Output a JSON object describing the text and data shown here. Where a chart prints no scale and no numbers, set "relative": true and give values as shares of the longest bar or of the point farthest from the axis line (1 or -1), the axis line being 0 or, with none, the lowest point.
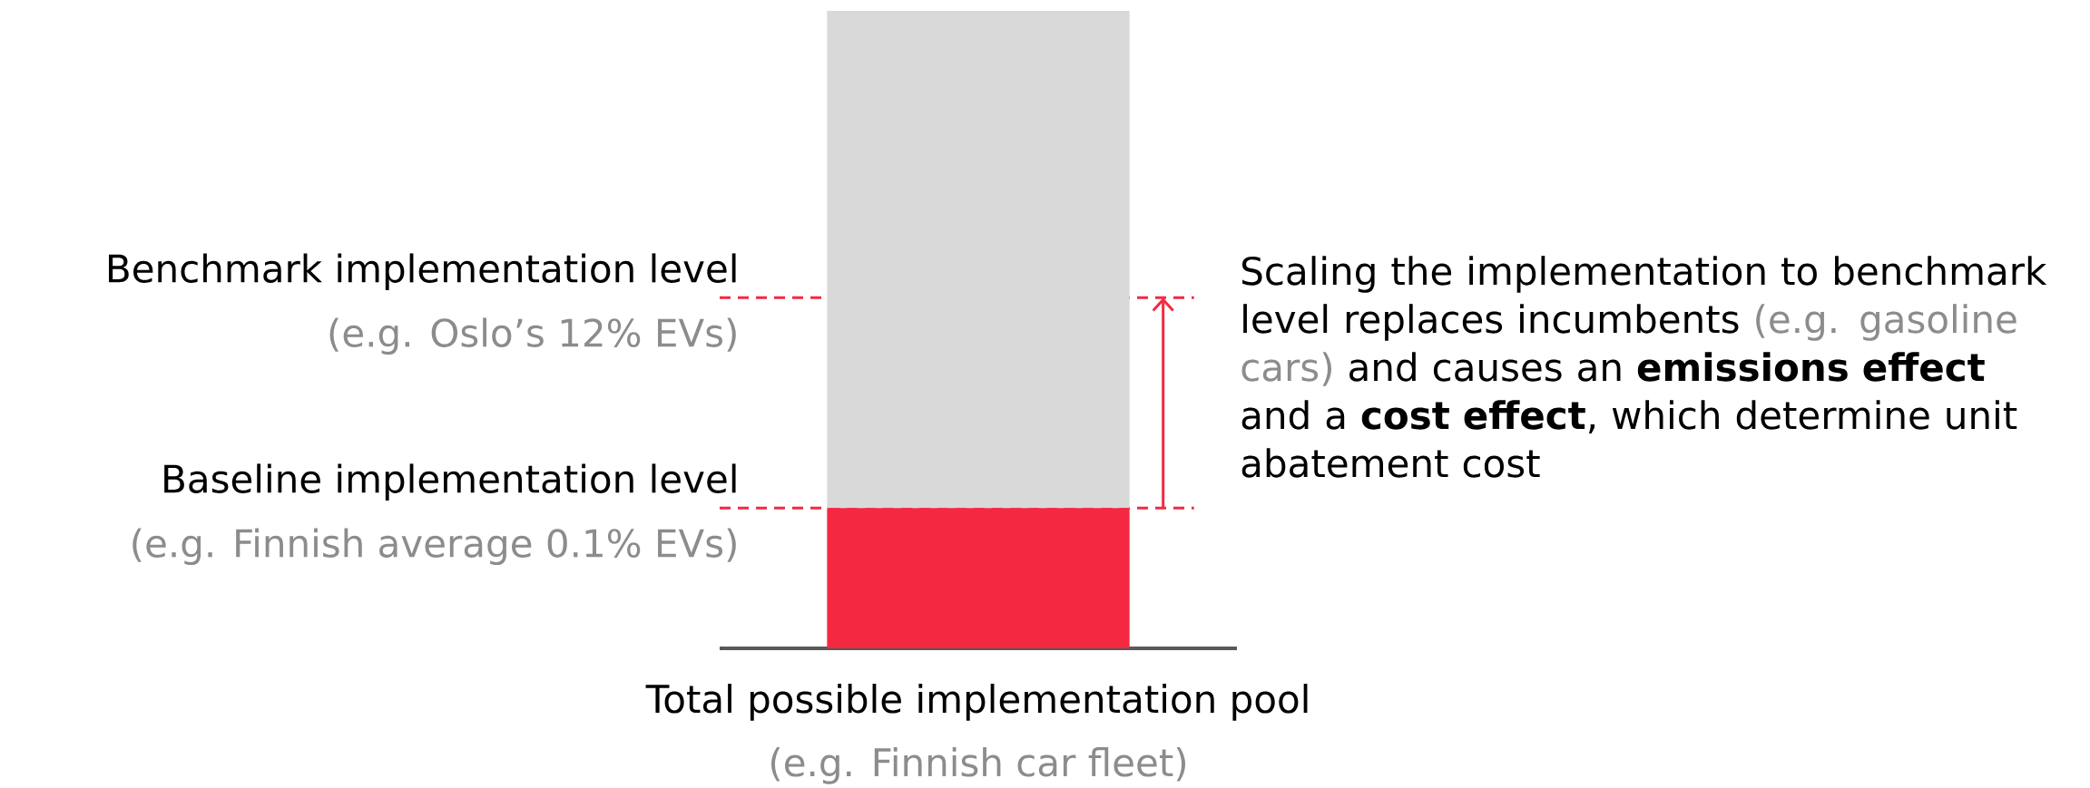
{
  "chart_data": {
    "type": "bar",
    "relative": true,
    "stacked": true,
    "categories": [
      null
    ],
    "series": [
      {
        "color": "#f42941",
        "values": [
          0.22
        ]
      },
      {
        "color": "#d9d9d9",
        "values": [
          0.78
        ]
      }
    ],
    "ref_lines": [
      {
        "axis": "y",
        "value": 0.55,
        "label": "Benchmark implementation level",
        "color": "#f42941",
        "line_style": "dashed"
      },
      {
        "axis": "y",
        "value": 0.22,
        "label": "Baseline implementation level",
        "color": "#f42941",
        "line_style": "dashed"
      }
    ],
    "xlabel": "Total possible implementation pool",
    "annotations": [
      "(e.g. Oslo’s 12% EVs)",
      "(e.g. Finnish average 0.1% EVs)",
      "(e.g. Finnish car fleet)",
      "Scaling the implementation to benchmark level replaces incumbents",
      "(e.g. gasoline cars)",
      "and causes an **emissions effect** and a **cost effect**, which determine unit abatement cost"
    ]
  }
}
